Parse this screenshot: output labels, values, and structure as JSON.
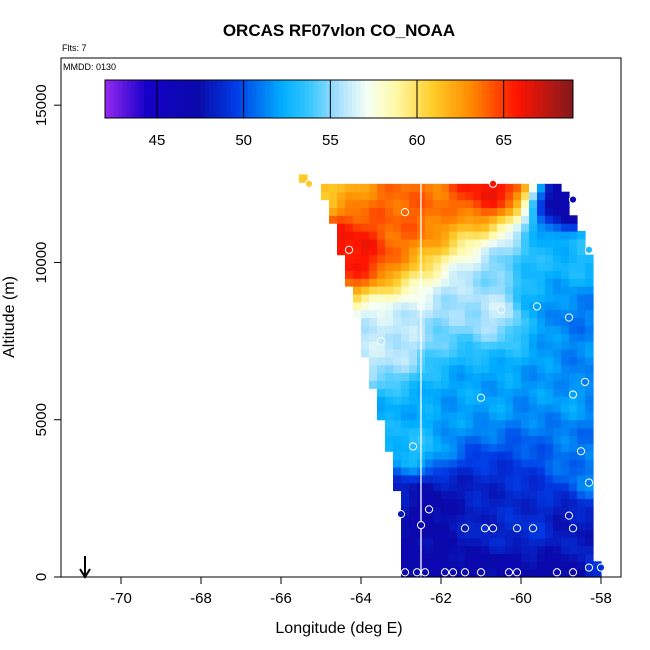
{
  "chart_data": {
    "type": "heatmap",
    "title": "ORCAS RF07vlon CO_NOAA",
    "annotations": [
      "Flts: 7",
      "MMDD: 0130"
    ],
    "xlabel": "Longitude (deg E)",
    "ylabel": "Altitude (m)",
    "xlim": [
      -71.5,
      -57.5
    ],
    "ylim": [
      0,
      16500
    ],
    "x_ticks": [
      -70,
      -68,
      -66,
      -64,
      -62,
      -60,
      -58
    ],
    "x_tick_labels": [
      "-70",
      "-68",
      "-66",
      "-64",
      "-62",
      "-60",
      "-58"
    ],
    "y_ticks": [
      0,
      5000,
      10000,
      15000
    ],
    "y_tick_labels": [
      "0",
      "5000",
      "10000",
      "15000"
    ],
    "colorbar": {
      "min": 42,
      "max": 69,
      "ticks": [
        45,
        50,
        55,
        60,
        65
      ],
      "tick_labels": [
        "45",
        "50",
        "55",
        "60",
        "65"
      ]
    },
    "reference_line_x": -62.5,
    "arrow_x": -70.9,
    "grid_lon_step": 0.2,
    "grid_alt_step": 250,
    "observations": [
      {
        "lon": -65.3,
        "alt": 12500,
        "value": 61
      },
      {
        "lon": -62.9,
        "alt": 11600,
        "value": 64
      },
      {
        "lon": -60.7,
        "alt": 12500,
        "value": 66
      },
      {
        "lon": -58.7,
        "alt": 12000,
        "value": 46
      },
      {
        "lon": -64.3,
        "alt": 10400,
        "value": 66
      },
      {
        "lon": -58.3,
        "alt": 10400,
        "value": 53
      },
      {
        "lon": -60.5,
        "alt": 8500,
        "value": 56
      },
      {
        "lon": -59.6,
        "alt": 8600,
        "value": 52
      },
      {
        "lon": -58.8,
        "alt": 8250,
        "value": 51
      },
      {
        "lon": -63.5,
        "alt": 7500,
        "value": 56
      },
      {
        "lon": -58.4,
        "alt": 6200,
        "value": 51
      },
      {
        "lon": -61.0,
        "alt": 5700,
        "value": 52
      },
      {
        "lon": -58.7,
        "alt": 5800,
        "value": 52
      },
      {
        "lon": -62.7,
        "alt": 4150,
        "value": 53
      },
      {
        "lon": -58.5,
        "alt": 4000,
        "value": 51
      },
      {
        "lon": -58.3,
        "alt": 3000,
        "value": 51
      },
      {
        "lon": -63.0,
        "alt": 2000,
        "value": 48
      },
      {
        "lon": -62.3,
        "alt": 2150,
        "value": 47
      },
      {
        "lon": -62.5,
        "alt": 1650,
        "value": 47
      },
      {
        "lon": -61.4,
        "alt": 1550,
        "value": 48
      },
      {
        "lon": -60.9,
        "alt": 1550,
        "value": 49
      },
      {
        "lon": -60.7,
        "alt": 1550,
        "value": 48
      },
      {
        "lon": -60.1,
        "alt": 1550,
        "value": 49
      },
      {
        "lon": -59.7,
        "alt": 1550,
        "value": 49
      },
      {
        "lon": -58.8,
        "alt": 1950,
        "value": 48
      },
      {
        "lon": -58.7,
        "alt": 1550,
        "value": 48
      },
      {
        "lon": -58.0,
        "alt": 300,
        "value": 49
      },
      {
        "lon": -62.9,
        "alt": 150,
        "value": 47
      },
      {
        "lon": -62.6,
        "alt": 150,
        "value": 47
      },
      {
        "lon": -62.4,
        "alt": 150,
        "value": 47
      },
      {
        "lon": -61.9,
        "alt": 150,
        "value": 47
      },
      {
        "lon": -61.7,
        "alt": 150,
        "value": 47
      },
      {
        "lon": -61.4,
        "alt": 150,
        "value": 47
      },
      {
        "lon": -61.0,
        "alt": 150,
        "value": 47
      },
      {
        "lon": -60.3,
        "alt": 150,
        "value": 47
      },
      {
        "lon": -60.1,
        "alt": 150,
        "value": 47
      },
      {
        "lon": -59.1,
        "alt": 150,
        "value": 47
      },
      {
        "lon": -58.7,
        "alt": 150,
        "value": 47
      },
      {
        "lon": -58.3,
        "alt": 300,
        "value": 49
      }
    ]
  }
}
